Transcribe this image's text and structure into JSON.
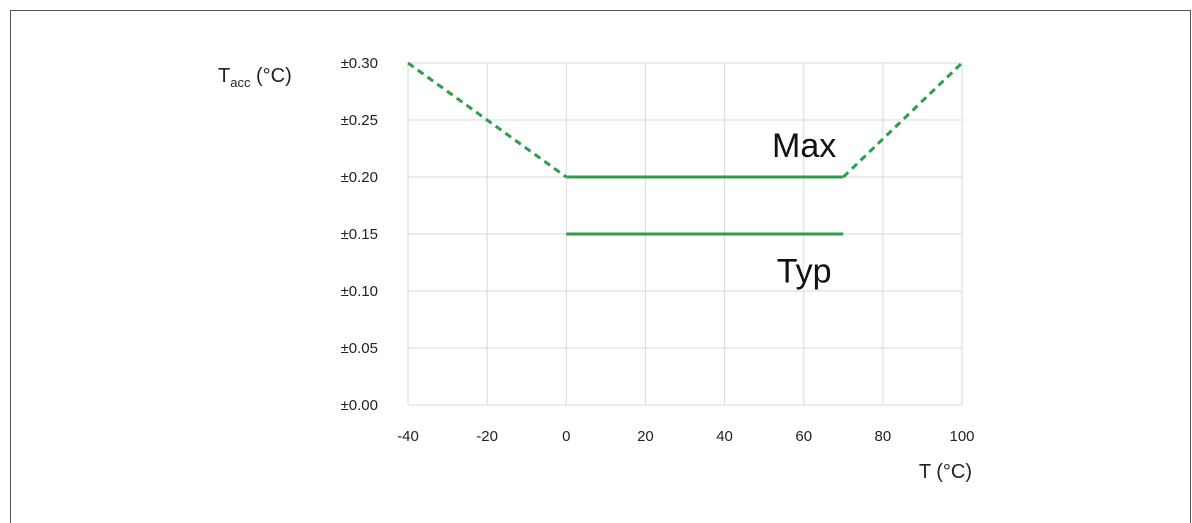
{
  "chart_data": {
    "type": "line",
    "ylabel": {
      "main": "T",
      "sub": "acc",
      "unit": " (°C)"
    },
    "xlabel": "T (°C)",
    "xlim": [
      -40,
      100
    ],
    "ylim": [
      0,
      0.3
    ],
    "x_ticks": [
      -40,
      -20,
      0,
      20,
      40,
      60,
      80,
      100
    ],
    "y_ticks": [
      {
        "value": 0.0,
        "label": "±0.00"
      },
      {
        "value": 0.05,
        "label": "±0.05"
      },
      {
        "value": 0.1,
        "label": "±0.10"
      },
      {
        "value": 0.15,
        "label": "±0.15"
      },
      {
        "value": 0.2,
        "label": "±0.20"
      },
      {
        "value": 0.25,
        "label": "±0.25"
      },
      {
        "value": 0.3,
        "label": "±0.30"
      }
    ],
    "grid": true,
    "series": [
      {
        "name": "Max",
        "color": "#2e9e4a",
        "segments": [
          {
            "style": "dashed",
            "x": [
              -40,
              0
            ],
            "y": [
              0.3,
              0.2
            ]
          },
          {
            "style": "solid",
            "x": [
              0,
              70
            ],
            "y": [
              0.2,
              0.2
            ]
          },
          {
            "style": "dashed",
            "x": [
              70,
              100
            ],
            "y": [
              0.2,
              0.3
            ]
          }
        ],
        "label_at": {
          "x": 50,
          "y": 0.228
        }
      },
      {
        "name": "Typ",
        "color": "#2e9e4a",
        "segments": [
          {
            "style": "solid",
            "x": [
              0,
              70
            ],
            "y": [
              0.15,
              0.15
            ]
          }
        ],
        "label_at": {
          "x": 50,
          "y": 0.118
        }
      }
    ]
  }
}
